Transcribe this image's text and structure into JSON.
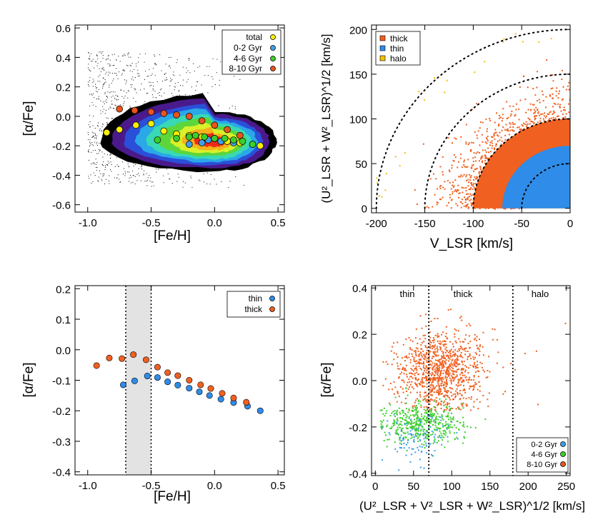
{
  "colors": {
    "thick": "#f06020",
    "thin": "#2f8ce8",
    "halo": "#f4c000",
    "young": "#3f9fe8",
    "mid": "#3ccf2a",
    "old": "#e8541c",
    "total": "#f8f000",
    "grey_band": "#e3e3e3",
    "contours": [
      "#000000",
      "#4a1a8c",
      "#2a4fd8",
      "#2aa8e8",
      "#38d9b4",
      "#5cd63a",
      "#d9f02a",
      "#f6b21a",
      "#ee2a1a"
    ]
  },
  "chart_data": [
    {
      "id": "A",
      "type": "scatter",
      "title": "",
      "xlabel": "[Fe/H]",
      "ylabel": "[α/Fe]",
      "xlim": [
        -1.1,
        0.55
      ],
      "ylim": [
        -0.65,
        0.62
      ],
      "xticks": [
        "-1.0",
        "-0.5",
        "0.0",
        "0.5"
      ],
      "xtick_values": [
        -1.0,
        -0.5,
        0.0,
        0.5
      ],
      "yticks": [
        "-0.6",
        "-0.4",
        "-0.2",
        "0.0",
        "0.2",
        "0.4",
        "0.6"
      ],
      "ytick_values": [
        -0.6,
        -0.4,
        -0.2,
        0.0,
        0.2,
        0.4,
        0.6
      ],
      "legend": [
        "total",
        "0-2 Gyr",
        "4-6 Gyr",
        "8-10 Gyr"
      ],
      "legend_position": "top-right",
      "density_contours": true,
      "series": [
        {
          "name": "total",
          "x": [
            -0.85,
            -0.75,
            -0.62,
            -0.5,
            -0.4,
            -0.3,
            -0.2,
            -0.1,
            0.0,
            0.1,
            0.2,
            0.3,
            0.36
          ],
          "y": [
            -0.11,
            -0.09,
            -0.06,
            -0.05,
            -0.1,
            -0.12,
            -0.13,
            -0.14,
            -0.15,
            -0.17,
            -0.18,
            -0.19,
            -0.2
          ]
        },
        {
          "name": "0-2 Gyr",
          "x": [
            -0.2,
            -0.1,
            -0.05,
            0.05,
            0.15
          ],
          "y": [
            -0.19,
            -0.18,
            -0.16,
            -0.17,
            -0.18
          ]
        },
        {
          "name": "4-6 Gyr",
          "x": [
            -0.45,
            -0.3,
            -0.2,
            -0.15,
            -0.08,
            0.0,
            0.08,
            0.15,
            0.22,
            0.3
          ],
          "y": [
            -0.16,
            -0.15,
            -0.14,
            -0.13,
            -0.14,
            -0.15,
            -0.15,
            -0.16,
            -0.17,
            -0.19
          ]
        },
        {
          "name": "8-10 Gyr",
          "x": [
            -0.75,
            -0.63,
            -0.5,
            -0.4,
            -0.3,
            -0.2,
            -0.1,
            0.0,
            0.1,
            0.2
          ],
          "y": [
            0.05,
            0.04,
            0.03,
            0.02,
            0.01,
            0.0,
            -0.03,
            -0.06,
            -0.09,
            -0.13
          ]
        }
      ]
    },
    {
      "id": "B",
      "type": "scatter",
      "title": "",
      "xlabel": "V_LSR [km/s]",
      "ylabel": "(U²_LSR + W²_LSR)^1/2 [km/s]",
      "xlim": [
        -205,
        0
      ],
      "ylim": [
        -5,
        205
      ],
      "xticks": [
        "-200",
        "-150",
        "-100",
        "-50",
        "0"
      ],
      "xtick_values": [
        -200,
        -150,
        -100,
        -50,
        0
      ],
      "yticks": [
        "0",
        "50",
        "100",
        "150",
        "200"
      ],
      "ytick_values": [
        0,
        50,
        100,
        150,
        200
      ],
      "legend": [
        "thick",
        "thin",
        "halo"
      ],
      "legend_position": "top-left",
      "reference_circles": [
        50,
        100,
        150,
        200
      ],
      "regions": [
        {
          "name": "thin",
          "radius": 70
        },
        {
          "name": "thick",
          "radius": 180
        },
        {
          "name": "halo",
          "radius": 200
        }
      ]
    },
    {
      "id": "C",
      "type": "scatter",
      "title": "",
      "xlabel": "[Fe/H]",
      "ylabel": "[α/Fe]",
      "xlim": [
        -1.1,
        0.55
      ],
      "ylim": [
        -0.41,
        0.21
      ],
      "xticks": [
        "-1.0",
        "-0.5",
        "0.0",
        "0.5"
      ],
      "xtick_values": [
        -1.0,
        -0.5,
        0.0,
        0.5
      ],
      "yticks": [
        "-0.4",
        "-0.3",
        "-0.2",
        "-0.1",
        "0.0",
        "0.1",
        "0.2"
      ],
      "ytick_values": [
        -0.4,
        -0.3,
        -0.2,
        -0.1,
        0.0,
        0.1,
        0.2
      ],
      "legend": [
        "thin",
        "thick"
      ],
      "legend_position": "top-right",
      "shaded_band": [
        -0.7,
        -0.5
      ],
      "series": [
        {
          "name": "thin",
          "x": [
            -0.72,
            -0.63,
            -0.53,
            -0.45,
            -0.37,
            -0.29,
            -0.2,
            -0.12,
            -0.04,
            0.05,
            0.15,
            0.26,
            0.36
          ],
          "y": [
            -0.115,
            -0.102,
            -0.086,
            -0.091,
            -0.105,
            -0.116,
            -0.126,
            -0.138,
            -0.15,
            -0.162,
            -0.173,
            -0.185,
            -0.2
          ]
        },
        {
          "name": "thick",
          "x": [
            -0.93,
            -0.83,
            -0.73,
            -0.64,
            -0.54,
            -0.45,
            -0.37,
            -0.29,
            -0.2,
            -0.11,
            -0.03,
            0.06,
            0.15,
            0.25
          ],
          "y": [
            -0.052,
            -0.027,
            -0.029,
            -0.016,
            -0.033,
            -0.057,
            -0.075,
            -0.085,
            -0.1,
            -0.115,
            -0.127,
            -0.143,
            -0.158,
            -0.172
          ]
        }
      ]
    },
    {
      "id": "D",
      "type": "scatter",
      "title": "",
      "xlabel": "(U²_LSR + V²_LSR + W²_LSR)^1/2 [km/s]",
      "ylabel": "[α/Fe]",
      "xlim": [
        -5,
        255
      ],
      "ylim": [
        -0.41,
        0.41
      ],
      "xticks": [
        "0",
        "50",
        "100",
        "150",
        "200",
        "250"
      ],
      "xtick_values": [
        0,
        50,
        100,
        150,
        200,
        250
      ],
      "yticks": [
        "-0.4",
        "-0.2",
        "0.0",
        "0.2",
        "0.4"
      ],
      "ytick_values": [
        -0.4,
        -0.2,
        0.0,
        0.2,
        0.4
      ],
      "legend": [
        "0-2 Gyr",
        "4-6 Gyr",
        "8-10 Gyr"
      ],
      "legend_position": "bottom-right",
      "dividers": [
        70,
        180
      ],
      "region_labels": [
        "thin",
        "thick",
        "halo"
      ],
      "series": [
        {
          "name": "8-10 Gyr",
          "center": [
            85,
            0.05
          ]
        },
        {
          "name": "4-6 Gyr",
          "center": [
            60,
            -0.18
          ]
        },
        {
          "name": "0-2 Gyr",
          "center": [
            55,
            -0.25
          ]
        }
      ]
    }
  ]
}
